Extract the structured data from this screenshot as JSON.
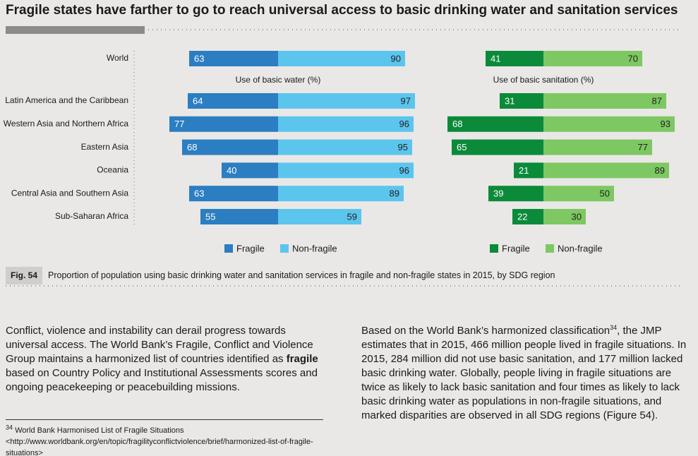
{
  "title": "Fragile states have farther to go to reach universal access to basic drinking water and sanitation services",
  "chart_data": {
    "type": "diverging-bar",
    "categories": [
      "World",
      "Latin America and the Caribbean",
      "Western Asia and Northern Africa",
      "Eastern Asia",
      "Oceania",
      "Central Asia and Southern Asia",
      "Sub-Saharan Africa"
    ],
    "panels": [
      {
        "xlabel": "Use of basic water (%)",
        "series": [
          {
            "name": "Fragile",
            "color": "#2b7ec1",
            "values": [
              63,
              64,
              77,
              68,
              40,
              63,
              55
            ]
          },
          {
            "name": "Non-fragile",
            "color": "#5cc5ee",
            "values": [
              90,
              97,
              96,
              95,
              96,
              89,
              59
            ]
          }
        ]
      },
      {
        "xlabel": "Use of basic sanitation (%)",
        "series": [
          {
            "name": "Fragile",
            "color": "#0b8a3a",
            "values": [
              41,
              31,
              68,
              65,
              21,
              39,
              22
            ]
          },
          {
            "name": "Non-fragile",
            "color": "#7dc862",
            "values": [
              70,
              87,
              93,
              77,
              89,
              50,
              30
            ]
          }
        ]
      }
    ]
  },
  "figure": {
    "label": "Fig. 54",
    "caption": "Proportion of population using basic drinking water and sanitation services in fragile and non-fragile states in 2015, by SDG region"
  },
  "body": {
    "left": [
      "Conflict, violence and instability can derail progress towards universal access. The World Bank’s Fragile, Conflict and Violence Group maintains a harmonized list of countries identified as ",
      "fragile",
      " based on Country Policy and Institutional Assessments scores and ongoing peacekeeping or peacebuilding missions."
    ],
    "right": [
      "Based on the World Bank’s harmonized classification",
      "34",
      ", the JMP estimates that in 2015, 466 million people lived in fragile situations. In 2015, 284 million did not use basic sanitation, and 177 million lacked basic drinking water. Globally, people living in fragile situations are twice as likely to lack basic sanitation and four times as likely to lack basic drinking water as populations in non-fragile situations, and marked disparities are observed in all SDG regions (Figure 54)."
    ]
  },
  "footnote": {
    "number": "34",
    "text": "World Bank Harmonised List of Fragile Situations <http://www.worldbank.org/en/topic/fragilityconflictviolence/brief/harmonized-list-of-fragile-situations>"
  }
}
